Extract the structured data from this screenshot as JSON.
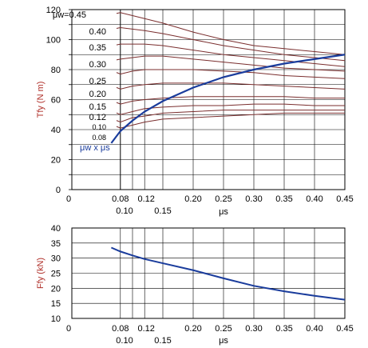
{
  "chart_data": [
    {
      "type": "line",
      "ylabel": "Tfy (N m)",
      "xlabel": "μs",
      "xlim": [
        0.0,
        0.45
      ],
      "ylim": [
        0,
        120
      ],
      "y_ticks": [
        "0",
        "20",
        "40",
        "60",
        "80",
        "100",
        "120"
      ],
      "x_ticks": [
        {
          "label": "0",
          "value": 0.0
        },
        {
          "label": "0.08",
          "value": 0.08
        },
        {
          "label": "0.10",
          "value": 0.1
        },
        {
          "label": "0.12",
          "value": 0.12
        },
        {
          "label": "0.15",
          "value": 0.15
        },
        {
          "label": "0.20",
          "value": 0.2
        },
        {
          "label": "0.25",
          "value": 0.25
        },
        {
          "label": "0.30",
          "value": 0.3
        },
        {
          "label": "0.35",
          "value": 0.35
        },
        {
          "label": "0.40",
          "value": 0.4
        },
        {
          "label": "0.45",
          "value": 0.45
        }
      ],
      "curve_labels": [
        "μw=0.45",
        "0.40",
        "0.35",
        "0.30",
        "0.25",
        "0.20",
        "0.15",
        "0.12",
        "0.10",
        "0.08"
      ],
      "x": [
        0.08,
        0.1,
        0.12,
        0.15,
        0.2,
        0.25,
        0.3,
        0.35,
        0.4,
        0.45
      ],
      "series": [
        {
          "key": "0.45",
          "values": [
            118,
            116,
            114,
            111,
            105,
            100,
            96,
            94,
            92,
            90
          ]
        },
        {
          "key": "0.40",
          "values": [
            108,
            107,
            106,
            104,
            100,
            96,
            93,
            90,
            88,
            86
          ]
        },
        {
          "key": "0.35",
          "values": [
            97,
            97,
            97,
            96,
            93,
            90,
            88,
            86,
            84,
            82
          ]
        },
        {
          "key": "0.30",
          "values": [
            87,
            88,
            89,
            89,
            87,
            85,
            83,
            81,
            80,
            79
          ]
        },
        {
          "key": "0.25",
          "values": [
            77,
            79,
            80,
            80,
            80,
            79,
            78,
            76,
            75,
            74
          ]
        },
        {
          "key": "0.20",
          "values": [
            67,
            69,
            70,
            71,
            71,
            71,
            70,
            69,
            68,
            67
          ]
        },
        {
          "key": "0.15",
          "values": [
            57,
            59,
            60,
            61,
            62,
            62,
            62,
            62,
            61,
            61
          ]
        },
        {
          "key": "0.12",
          "values": [
            50,
            52,
            54,
            55,
            56,
            56,
            57,
            57,
            56,
            56
          ]
        },
        {
          "key": "0.10",
          "values": [
            45,
            48,
            49,
            51,
            52,
            53,
            53,
            53,
            53,
            53
          ]
        },
        {
          "key": "0.08",
          "values": [
            41,
            43,
            45,
            47,
            48,
            49,
            50,
            51,
            51,
            51
          ]
        }
      ],
      "envelope": {
        "name": "μw x μs",
        "x": [
          0.065,
          0.08,
          0.1,
          0.12,
          0.15,
          0.2,
          0.25,
          0.3,
          0.35,
          0.4,
          0.45
        ],
        "values": [
          31,
          39,
          46,
          52,
          59,
          68,
          75,
          80,
          84,
          87,
          90
        ]
      }
    },
    {
      "type": "line",
      "ylabel": "Ffy (kN)",
      "xlabel": "μs",
      "xlim": [
        0.0,
        0.45
      ],
      "ylim": [
        10,
        40
      ],
      "y_ticks": [
        "10",
        "15",
        "20",
        "25",
        "30",
        "35",
        "40"
      ],
      "x_ticks": [
        {
          "label": "0",
          "value": 0.0
        },
        {
          "label": "0.08",
          "value": 0.08
        },
        {
          "label": "0.10",
          "value": 0.1
        },
        {
          "label": "0.12",
          "value": 0.12
        },
        {
          "label": "0.15",
          "value": 0.15
        },
        {
          "label": "0.20",
          "value": 0.2
        },
        {
          "label": "0.25",
          "value": 0.25
        },
        {
          "label": "0.30",
          "value": 0.3
        },
        {
          "label": "0.35",
          "value": 0.35
        },
        {
          "label": "0.40",
          "value": 0.4
        },
        {
          "label": "0.45",
          "value": 0.45
        }
      ],
      "x": [
        0.065,
        0.08,
        0.1,
        0.12,
        0.15,
        0.2,
        0.25,
        0.3,
        0.35,
        0.4,
        0.45
      ],
      "values": [
        33.5,
        32.2,
        30.9,
        29.7,
        28.3,
        26.0,
        23.3,
        20.8,
        19.0,
        17.5,
        16.2
      ]
    }
  ],
  "colors": {
    "curves": "#7a2e2e",
    "envelope": "#1a3c9c",
    "label": "#b0302a",
    "grid": "#000000"
  }
}
